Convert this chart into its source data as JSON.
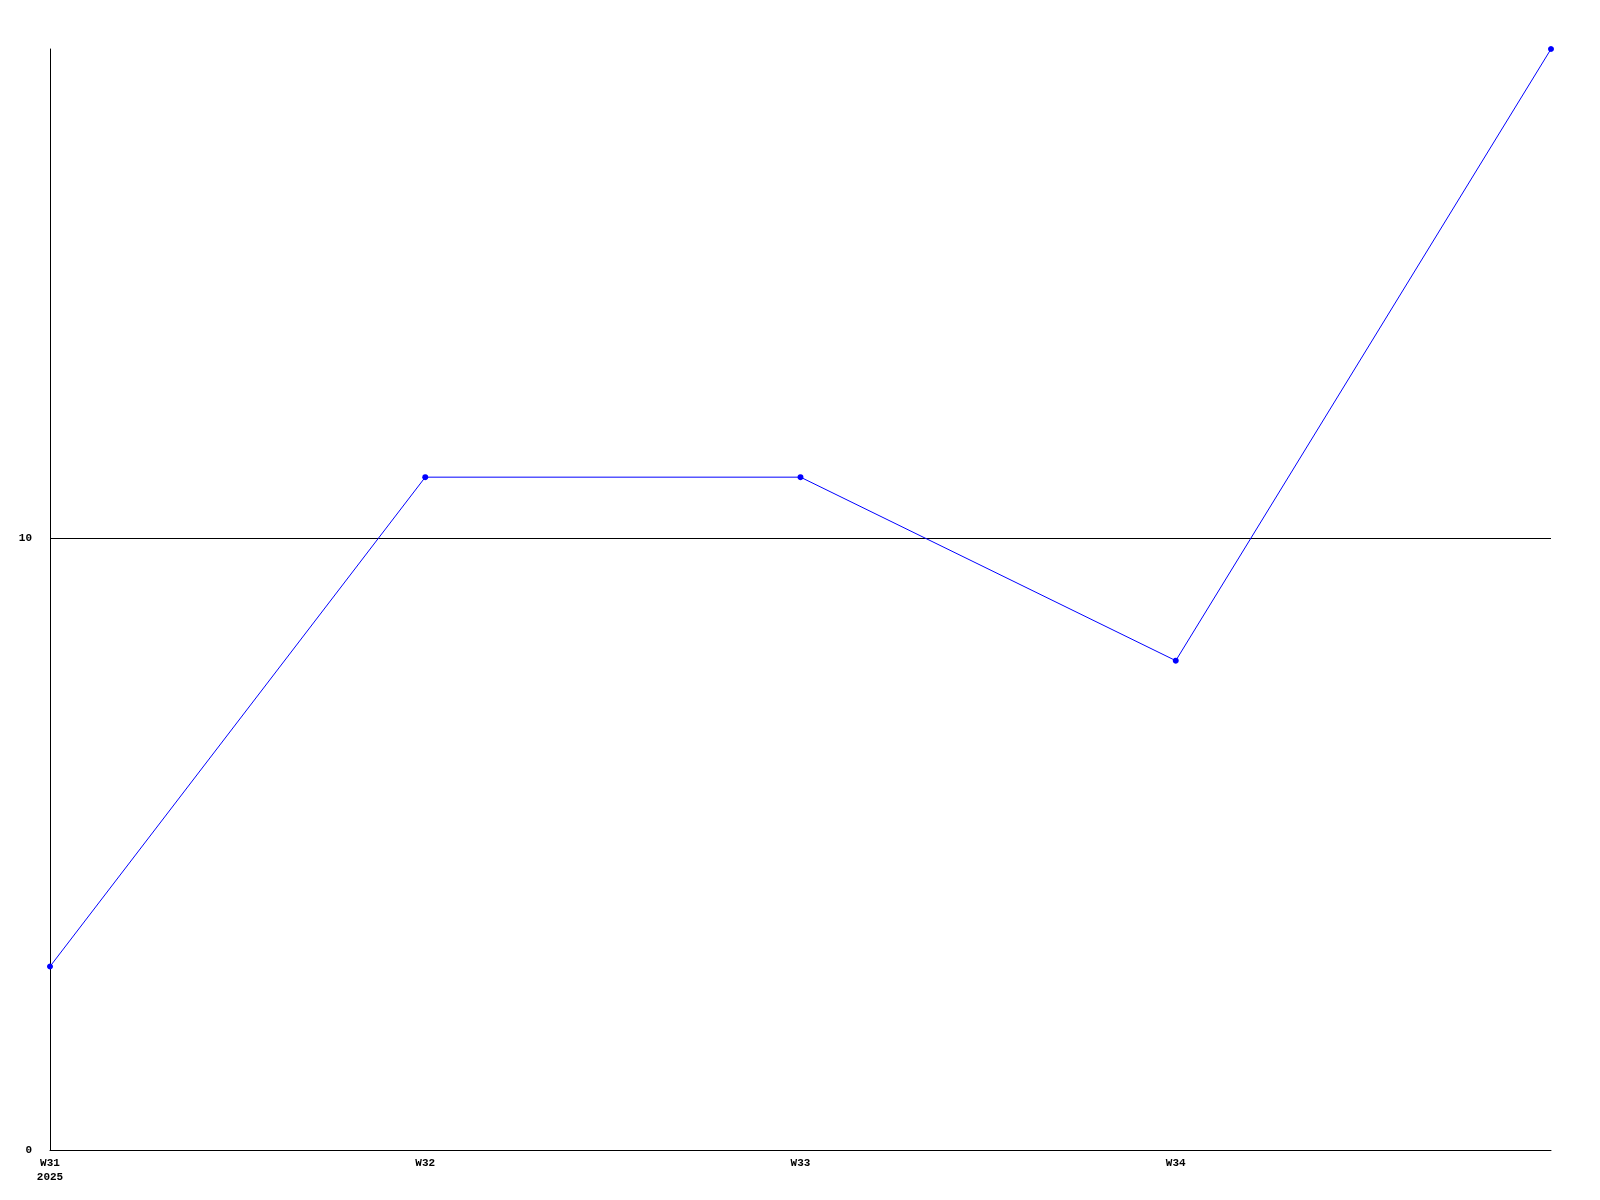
{
  "chart_data": {
    "type": "line",
    "categories": [
      "W31\n2025",
      "W32",
      "W33",
      "W34",
      null
    ],
    "series": [
      {
        "color": "#0000ff",
        "values": [
          3,
          11,
          11,
          8,
          18
        ]
      }
    ],
    "ylim": [
      0,
      18
    ],
    "yticks": [
      0,
      10
    ],
    "grid": "y",
    "marker": "circle",
    "line_style": "solid"
  }
}
